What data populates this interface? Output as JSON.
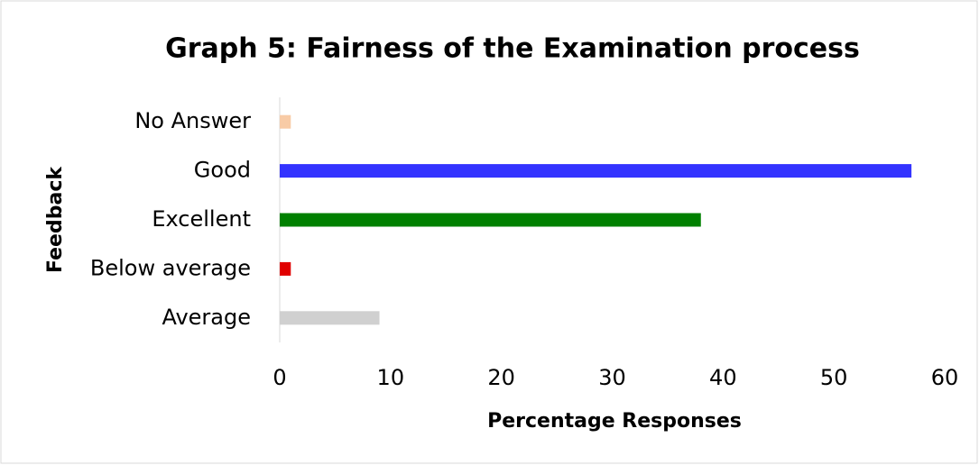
{
  "chart_data": {
    "type": "barh",
    "title": "Graph 5: Fairness of the Examination process",
    "categories": [
      "Average",
      "Below average",
      "Excellent",
      "Good",
      "No Answer"
    ],
    "values": [
      9,
      1,
      38,
      57,
      1
    ],
    "colors": [
      "#d0d0d0",
      "#e00000",
      "#008000",
      "#3333ff",
      "#f8cba6"
    ],
    "xlabel": "Percentage Responses",
    "ylabel": "Feedback",
    "xlim": [
      0,
      60
    ],
    "xticks": [
      0,
      10,
      20,
      30,
      40,
      50,
      60
    ],
    "grid": false
  }
}
